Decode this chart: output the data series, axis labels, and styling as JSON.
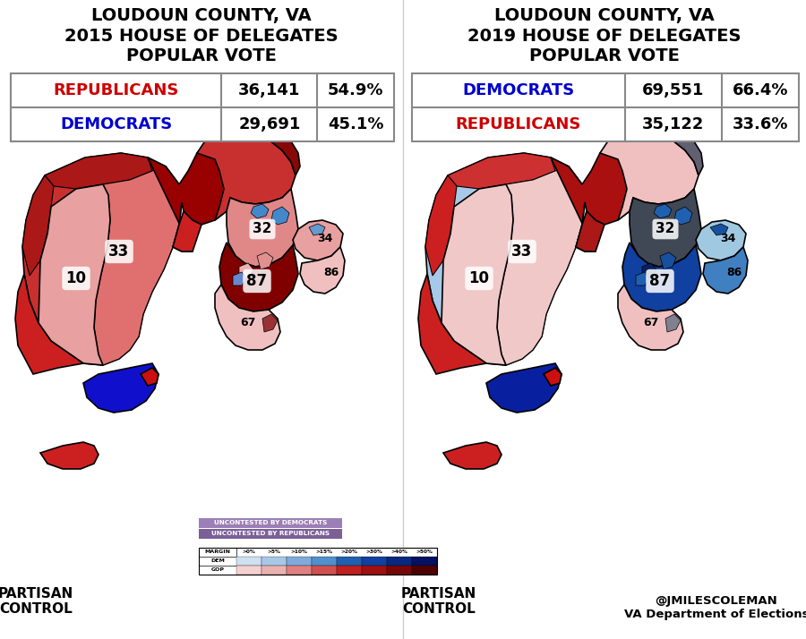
{
  "title_left": "LOUDOUN COUNTY, VA\n2015 HOUSE OF DELEGATES\nPOPULAR VOTE",
  "title_right": "LOUDOUN COUNTY, VA\n2019 HOUSE OF DELEGATES\nPOPULAR VOTE",
  "table_left": {
    "row1_label": "REPUBLICANS",
    "row1_color": "#cc0000",
    "row1_votes": "36,141",
    "row1_pct": "54.9%",
    "row2_label": "DEMOCRATS",
    "row2_color": "#0000cc",
    "row2_votes": "29,691",
    "row2_pct": "45.1%"
  },
  "table_right": {
    "row1_label": "DEMOCRATS",
    "row1_color": "#0000cc",
    "row1_votes": "69,551",
    "row1_pct": "66.4%",
    "row2_label": "REPUBLICANS",
    "row2_color": "#cc0000",
    "row2_votes": "35,122",
    "row2_pct": "33.6%"
  },
  "footer_left": "PARTISAN\nCONTROL",
  "footer_right": "@JMILESCOLEMAN\nVA Department of Elections",
  "legend_thresholds": [
    ">0%",
    ">5%",
    ">10%",
    ">15%",
    ">20%",
    ">30%",
    ">40%",
    ">50%"
  ],
  "dem_colors": [
    "#cfe0f0",
    "#a8c8e8",
    "#80aadc",
    "#5090cc",
    "#2060b0",
    "#1040a0",
    "#082880",
    "#041060"
  ],
  "gop_colors": [
    "#f5d0d0",
    "#ebb0b0",
    "#e08080",
    "#d05050",
    "#c02020",
    "#a01010",
    "#780808",
    "#500000"
  ],
  "uncontested_dem_color": "#9b7fb6",
  "uncontested_gop_color": "#7b5f96",
  "bg_color": "#ffffff",
  "table_border_color": "#888888",
  "title_fontsize": 14,
  "table_fontsize": 13
}
